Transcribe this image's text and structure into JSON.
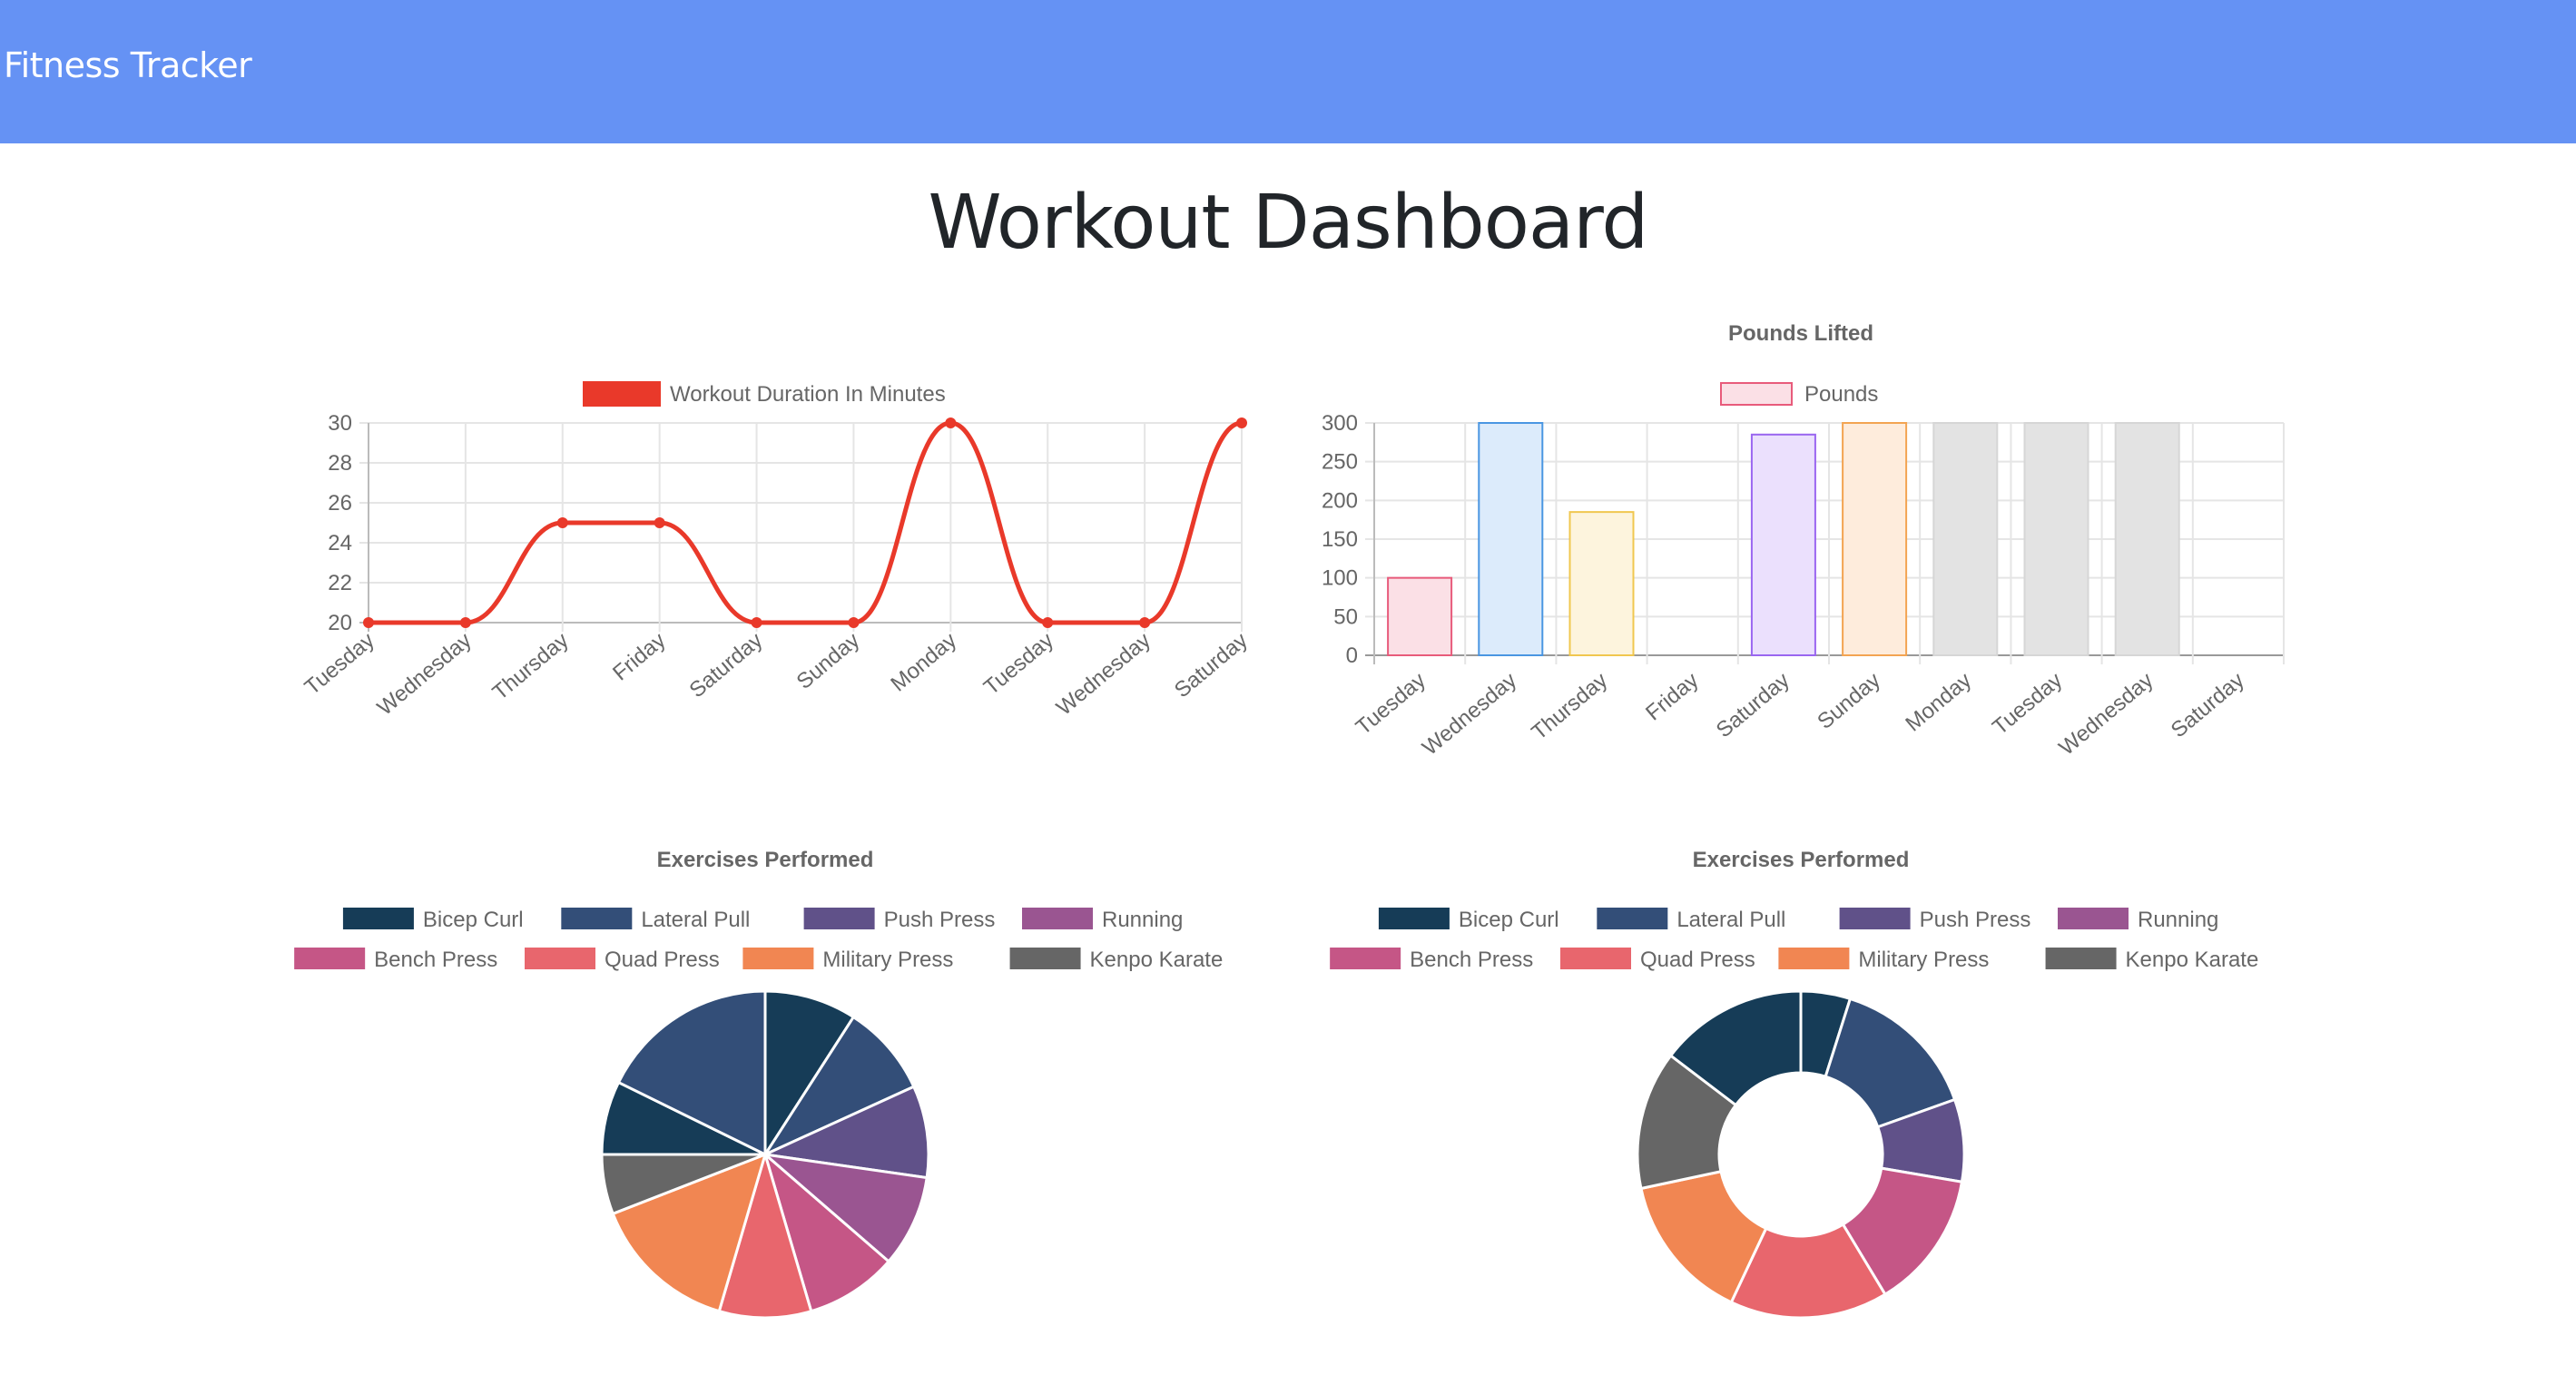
{
  "navbar": {
    "brand": "Fitness Tracker"
  },
  "page": {
    "title": "Workout Dashboard"
  },
  "colors": {
    "navbar": "#6592f4",
    "line": "#e9392a",
    "grid": "#e5e5e5",
    "axis_text": "#666666"
  },
  "chart_data": [
    {
      "type": "line",
      "title": "",
      "legend": {
        "label": "Workout Duration In Minutes",
        "color": "#e9392a",
        "placement": "top-center"
      },
      "categories": [
        "Tuesday",
        "Wednesday",
        "Thursday",
        "Friday",
        "Saturday",
        "Sunday",
        "Monday",
        "Tuesday",
        "Wednesday",
        "Saturday"
      ],
      "series": [
        {
          "name": "Workout Duration In Minutes",
          "values": [
            20,
            20,
            25,
            25,
            20,
            20,
            30,
            20,
            20,
            30
          ]
        }
      ],
      "yticks": [
        20,
        22,
        24,
        26,
        28,
        30
      ],
      "ylim": [
        20,
        30
      ],
      "grid": true
    },
    {
      "type": "bar",
      "title": "Pounds Lifted",
      "legend": {
        "label": "Pounds",
        "placement": "top-center"
      },
      "categories": [
        "Tuesday",
        "Wednesday",
        "Thursday",
        "Friday",
        "Saturday",
        "Sunday",
        "Monday",
        "Tuesday",
        "Wednesday",
        "Saturday"
      ],
      "series": [
        {
          "name": "Pounds",
          "values": [
            100,
            300,
            185,
            0,
            285,
            300,
            300,
            300,
            300,
            0
          ]
        }
      ],
      "bar_fill": [
        "#fbe0e6",
        "#dcebfb",
        "#fdf4dd",
        "#e4e4e4",
        "#ebe0fd",
        "#feecdc",
        "#e3e3e3",
        "#e3e3e3",
        "#e3e3e3",
        "#e3e3e3"
      ],
      "bar_stroke": [
        "#e85b7b",
        "#4a96e2",
        "#f0c74f",
        "#c9c9c9",
        "#9a66f0",
        "#f3a452",
        "#d6d6d6",
        "#d6d6d6",
        "#d6d6d6",
        "#d6d6d6"
      ],
      "yticks": [
        0,
        50,
        100,
        150,
        200,
        250,
        300
      ],
      "ylim": [
        0,
        300
      ],
      "grid": true
    },
    {
      "type": "pie",
      "title": "Exercises Performed",
      "legend": [
        {
          "label": "Bicep Curl",
          "color": "#163c57"
        },
        {
          "label": "Lateral Pull",
          "color": "#334e78"
        },
        {
          "label": "Push Press",
          "color": "#605189"
        },
        {
          "label": "Running",
          "color": "#9a5591"
        },
        {
          "label": "Bench Press",
          "color": "#c55686"
        },
        {
          "label": "Quad Press",
          "color": "#e8666d"
        },
        {
          "label": "Military Press",
          "color": "#f18652"
        },
        {
          "label": "Kenpo Karate",
          "color": "#666666"
        }
      ],
      "slices": [
        {
          "label": "Bicep Curl",
          "value": 1,
          "color": "#163c57"
        },
        {
          "label": "Lateral Pull",
          "value": 1,
          "color": "#334e78"
        },
        {
          "label": "Push Press",
          "value": 1,
          "color": "#605189"
        },
        {
          "label": "Running",
          "value": 1,
          "color": "#9a5591"
        },
        {
          "label": "Bench Press",
          "value": 1,
          "color": "#c55686"
        },
        {
          "label": "Quad Press",
          "value": 1,
          "color": "#e8666d"
        },
        {
          "label": "Military Press",
          "value": 1.6,
          "color": "#f18652"
        },
        {
          "label": "Kenpo Karate",
          "value": 0.65,
          "color": "#666666"
        },
        {
          "label": "Bicep Curl",
          "value": 0.8,
          "color": "#163c57"
        },
        {
          "label": "Lateral Pull",
          "value": 1.95,
          "color": "#334e78"
        }
      ]
    },
    {
      "type": "doughnut",
      "title": "Exercises Performed",
      "legend": [
        {
          "label": "Bicep Curl",
          "color": "#163c57"
        },
        {
          "label": "Lateral Pull",
          "color": "#334e78"
        },
        {
          "label": "Push Press",
          "color": "#605189"
        },
        {
          "label": "Running",
          "color": "#9a5591"
        },
        {
          "label": "Bench Press",
          "color": "#c55686"
        },
        {
          "label": "Quad Press",
          "color": "#e8666d"
        },
        {
          "label": "Military Press",
          "color": "#f18652"
        },
        {
          "label": "Kenpo Karate",
          "color": "#666666"
        }
      ],
      "slices": [
        {
          "label": "Bicep Curl",
          "value": 15,
          "color": "#163c57"
        },
        {
          "label": "Lateral Pull",
          "value": 45,
          "color": "#334e78"
        },
        {
          "label": "Push Press",
          "value": 25,
          "color": "#605189"
        },
        {
          "label": "Bench Press",
          "value": 42,
          "color": "#c55686"
        },
        {
          "label": "Quad Press",
          "value": 48,
          "color": "#e8666d"
        },
        {
          "label": "Military Press",
          "value": 45,
          "color": "#f18652"
        },
        {
          "label": "Kenpo Karate",
          "value": 42,
          "color": "#666666"
        },
        {
          "label": "Bicep Curl",
          "value": 45,
          "color": "#163c57"
        }
      ]
    }
  ]
}
